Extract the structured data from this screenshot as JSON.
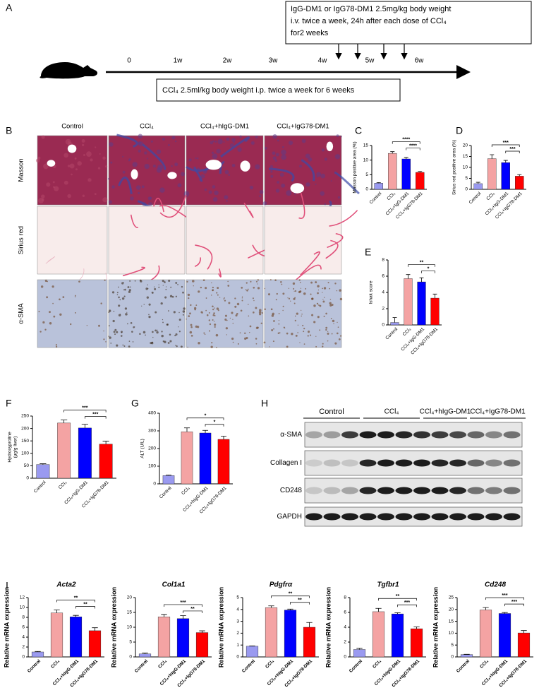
{
  "panel_a": {
    "label": "A",
    "treatment_box": [
      "IgG-DM1 or IgG78-DM1 2.5mg/kg body weight",
      "i.v. twice a week, 24h after each dose of CCl₄",
      "for2 weeks"
    ],
    "timeline": [
      "0",
      "1w",
      "2w",
      "3w",
      "4w",
      "5w",
      "6w"
    ],
    "ccl4_box": "CCl₄  2.5ml/kg body weight i.p. twice a week for 6 weeks"
  },
  "panel_b": {
    "label": "B",
    "columns": [
      "Control",
      "CCl₄",
      "CCl₄+hIgG-DM1",
      "CCl₄+IgG78-DM1"
    ],
    "rows": [
      "Masson",
      "Sirius red",
      "α-SMA"
    ]
  },
  "panel_h": {
    "label": "H",
    "groups": [
      "Control",
      "CCl₄",
      "CCl₄+hIgG-DM1",
      "CCl₄+IgG78-DM1"
    ],
    "rows": [
      "α-SMA",
      "Collagen I",
      "CD248",
      "GAPDH"
    ]
  },
  "panel_i": {
    "label": "I"
  },
  "chart_data": [
    {
      "type": "bar",
      "panel": "C",
      "y_label": [
        "Masson positive area (%)"
      ],
      "categories": [
        "Control",
        "CCl₄",
        "CCl₄+IgG-DM1",
        "CCl₄+IgG78-DM1"
      ],
      "colors": [
        "#9a9af0",
        "#f4a3a3",
        "#0000ff",
        "#ff0000"
      ],
      "values": [
        2.1,
        12.3,
        10.4,
        5.8
      ],
      "errors": [
        0.2,
        0.6,
        0.5,
        0.3
      ],
      "ylim": [
        0,
        15
      ],
      "yticks": [
        0,
        5,
        10,
        15
      ],
      "annotations": [
        {
          "from": 1,
          "to": 3,
          "label": "****"
        },
        {
          "from": 2,
          "to": 3,
          "label": "****"
        }
      ]
    },
    {
      "type": "bar",
      "panel": "D",
      "y_label": [
        "Sirius red positive area (%)"
      ],
      "categories": [
        "Control",
        "CCl₄",
        "CCl₄+IgG-DM1",
        "CCl₄+IgG78-DM1"
      ],
      "colors": [
        "#9a9af0",
        "#f4a3a3",
        "#0000ff",
        "#ff0000"
      ],
      "values": [
        2.6,
        14,
        12.2,
        6
      ],
      "errors": [
        0.6,
        1.8,
        1,
        0.7
      ],
      "ylim": [
        0,
        20
      ],
      "yticks": [
        0,
        5,
        10,
        15,
        20
      ],
      "annotations": [
        {
          "from": 1,
          "to": 3,
          "label": "***"
        },
        {
          "from": 2,
          "to": 3,
          "label": "***"
        }
      ]
    },
    {
      "type": "bar",
      "panel": "E",
      "y_label": [
        "Ishak score"
      ],
      "categories": [
        "Control",
        "CCl₄",
        "CCl₄+IgG-DM1",
        "CCl₄+IgG78-DM1"
      ],
      "colors": [
        "#9a9af0",
        "#f4a3a3",
        "#0000ff",
        "#ff0000"
      ],
      "values": [
        0.3,
        5.7,
        5.3,
        3.3
      ],
      "errors": [
        0.6,
        0.5,
        0.5,
        0.5
      ],
      "ylim": [
        0,
        8
      ],
      "yticks": [
        0,
        2,
        4,
        6,
        8
      ],
      "annotations": [
        {
          "from": 1,
          "to": 3,
          "label": "**"
        },
        {
          "from": 2,
          "to": 3,
          "label": "*"
        }
      ]
    },
    {
      "type": "bar",
      "panel": "F",
      "y_label": [
        "Hydroxyproline",
        "(μg/g liver)"
      ],
      "categories": [
        "Control",
        "CCl₄",
        "CCl₄+IgG-DM1",
        "CCl₄+IgG78-DM1"
      ],
      "colors": [
        "#9a9af0",
        "#f4a3a3",
        "#0000ff",
        "#ff0000"
      ],
      "values": [
        55,
        222,
        202,
        137
      ],
      "errors": [
        3,
        12,
        15,
        12
      ],
      "ylim": [
        0,
        250
      ],
      "yticks": [
        0,
        50,
        100,
        150,
        200,
        250
      ],
      "annotations": [
        {
          "from": 1,
          "to": 3,
          "label": "***"
        },
        {
          "from": 2,
          "to": 3,
          "label": "***"
        }
      ]
    },
    {
      "type": "bar",
      "panel": "G",
      "y_label": [
        "ALT (U/L)"
      ],
      "categories": [
        "Control",
        "CCl₄",
        "CCl₄+hIgG-DM1",
        "CCl₄+IgG78-DM1"
      ],
      "colors": [
        "#9a9af0",
        "#f4a3a3",
        "#0000ff",
        "#ff0000"
      ],
      "values": [
        47,
        295,
        288,
        252
      ],
      "errors": [
        3,
        22,
        15,
        18
      ],
      "ylim": [
        0,
        400
      ],
      "yticks": [
        0,
        100,
        200,
        300,
        400
      ],
      "annotations": [
        {
          "from": 1,
          "to": 3,
          "label": "*"
        },
        {
          "from": 2,
          "to": 3,
          "label": "*"
        }
      ]
    },
    {
      "type": "bar",
      "title": "Acta2",
      "y_label": [
        "Relative mRNA expression"
      ],
      "categories": [
        "Control",
        "CCl₄",
        "CCl₄+hIgG-DM1",
        "CCl₄+IgG78-DM1"
      ],
      "colors": [
        "#9a9af0",
        "#f4a3a3",
        "#0000ff",
        "#ff0000"
      ],
      "values": [
        1,
        8.9,
        8.1,
        5.3
      ],
      "errors": [
        0.1,
        0.6,
        0.3,
        0.6
      ],
      "ylim": [
        0,
        12
      ],
      "yticks": [
        0,
        2,
        4,
        6,
        8,
        10,
        12
      ],
      "annotations": [
        {
          "from": 1,
          "to": 3,
          "label": "**"
        },
        {
          "from": 2,
          "to": 3,
          "label": "**"
        }
      ]
    },
    {
      "type": "bar",
      "title": "Col1a1",
      "y_label": [
        "Relative mRNA expression"
      ],
      "categories": [
        "Control",
        "CCl₄",
        "CCl₄+hIgG-DM1",
        "CCl₄+IgG78-DM1"
      ],
      "colors": [
        "#9a9af0",
        "#f4a3a3",
        "#0000ff",
        "#ff0000"
      ],
      "values": [
        1,
        13.5,
        12.9,
        8.2
      ],
      "errors": [
        0.3,
        0.8,
        1.0,
        0.6
      ],
      "ylim": [
        0,
        20
      ],
      "yticks": [
        0,
        5,
        10,
        15,
        20
      ],
      "annotations": [
        {
          "from": 1,
          "to": 3,
          "label": "***"
        },
        {
          "from": 2,
          "to": 3,
          "label": "**"
        }
      ]
    },
    {
      "type": "bar",
      "title": "Pdgfrα",
      "y_label": [
        "Relative mRNA expression"
      ],
      "categories": [
        "Control",
        "CCl₄",
        "CCl₄+hIgG-DM1",
        "CCl₄+IgG78-DM1"
      ],
      "colors": [
        "#9a9af0",
        "#f4a3a3",
        "#0000ff",
        "#ff0000"
      ],
      "values": [
        0.9,
        4.15,
        3.95,
        2.5
      ],
      "errors": [
        0.03,
        0.15,
        0.08,
        0.4
      ],
      "ylim": [
        0,
        5
      ],
      "yticks": [
        0,
        1,
        2,
        3,
        4,
        5
      ],
      "annotations": [
        {
          "from": 1,
          "to": 3,
          "label": "**"
        },
        {
          "from": 2,
          "to": 3,
          "label": "**"
        }
      ]
    },
    {
      "type": "bar",
      "title": "Tgfbr1",
      "y_label": [
        "Relative mRNA expression"
      ],
      "categories": [
        "Control",
        "CCl₄",
        "CCl₄+hIgG-DM1",
        "CCl₄+IgG78-DM1"
      ],
      "colors": [
        "#9a9af0",
        "#f4a3a3",
        "#0000ff",
        "#ff0000"
      ],
      "values": [
        1.0,
        6.1,
        5.8,
        3.8
      ],
      "errors": [
        0.15,
        0.45,
        0.15,
        0.25
      ],
      "ylim": [
        0,
        8
      ],
      "yticks": [
        0,
        2,
        4,
        6,
        8
      ],
      "annotations": [
        {
          "from": 1,
          "to": 3,
          "label": "**"
        },
        {
          "from": 2,
          "to": 3,
          "label": "***"
        }
      ]
    },
    {
      "type": "bar",
      "title": "Cd248",
      "y_label": [
        "Relative mRNA expression"
      ],
      "categories": [
        "Control",
        "CCl₄",
        "CCl₄+hIgG-DM1",
        "CCl₄+IgG78-DM1"
      ],
      "colors": [
        "#9a9af0",
        "#f4a3a3",
        "#0000ff",
        "#ff0000"
      ],
      "values": [
        1,
        19.8,
        18.3,
        10.1
      ],
      "errors": [
        0.1,
        1.0,
        0.4,
        1.0
      ],
      "ylim": [
        0,
        25
      ],
      "yticks": [
        0,
        5,
        10,
        15,
        20,
        25
      ],
      "annotations": [
        {
          "from": 1,
          "to": 3,
          "label": "***"
        },
        {
          "from": 2,
          "to": 3,
          "label": "***"
        }
      ]
    }
  ]
}
